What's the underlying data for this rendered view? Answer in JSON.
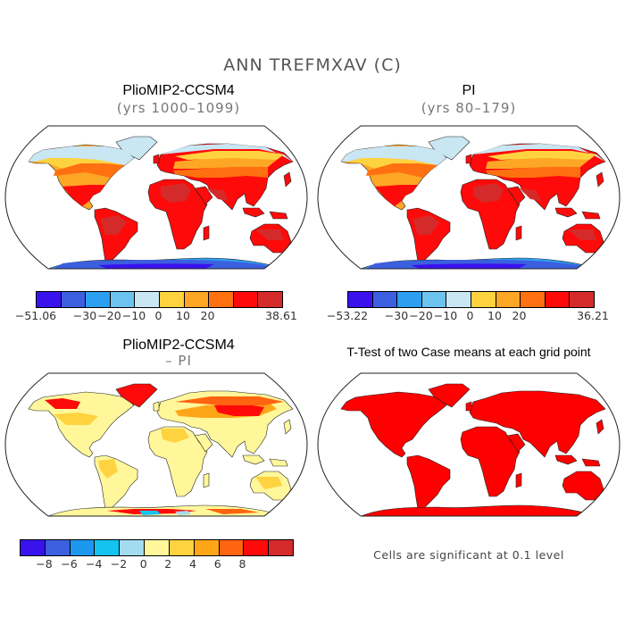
{
  "title": "ANN TREFMXAV (C)",
  "panels": [
    {
      "title": "PlioMIP2-CCSM4",
      "subtitle": "(yrs 1000–1099)"
    },
    {
      "title": "PI",
      "subtitle": "(yrs 80–179)"
    },
    {
      "title": "PlioMIP2-CCSM4",
      "subtitle": "– PI"
    },
    {
      "title": "T-Test of two Case means at each grid point",
      "subtitle": ""
    }
  ],
  "colorbars": [
    {
      "colors": [
        "#3a12ee",
        "#3c5fe0",
        "#2d9ff0",
        "#6cc3ef",
        "#c9e6f3",
        "#ffd23f",
        "#fea625",
        "#ff7010",
        "#ff0a0a",
        "#d42a2a"
      ],
      "labels": [
        "−51.06",
        "−30",
        "−20",
        "−10",
        "0",
        "10",
        "20",
        "38.61"
      ]
    },
    {
      "colors": [
        "#3a12ee",
        "#3c5fe0",
        "#2d9ff0",
        "#6cc3ef",
        "#c9e6f3",
        "#ffd23f",
        "#fea625",
        "#ff7010",
        "#ff0a0a",
        "#d42a2a"
      ],
      "labels": [
        "−53.22",
        "−30",
        "−20",
        "−10",
        "0",
        "10",
        "20",
        "36.21"
      ]
    },
    {
      "colors": [
        "#3a12ee",
        "#3c5fe0",
        "#1c97f0",
        "#14c3f0",
        "#a3dcf0",
        "#fff79a",
        "#ffd240",
        "#ffa518",
        "#ff6410",
        "#ff0a0a",
        "#d42a2a"
      ],
      "labels": [
        "−8",
        "−6",
        "−4",
        "−2",
        "0",
        "2",
        "4",
        "6",
        "8"
      ]
    }
  ],
  "note": "Cells are significant at 0.1 level",
  "map_colors": {
    "mean_polar": "#6cc3ef",
    "mean_cold": "#c9e6f3",
    "mean_cool": "#ffd23f",
    "mean_mid": "#fea625",
    "mean_warm": "#ff7010",
    "mean_hot": "#ff0a0a",
    "mean_hottest": "#d42a2a",
    "ant_deep": "#3c5fe0",
    "ant_mid": "#2d9ff0",
    "diff_base": "#fff79a",
    "diff_mid": "#ffd240",
    "diff_hi": "#ffa518",
    "diff_top": "#ff6410",
    "diff_max": "#ff0a0a",
    "ttest": "#ff0000"
  }
}
